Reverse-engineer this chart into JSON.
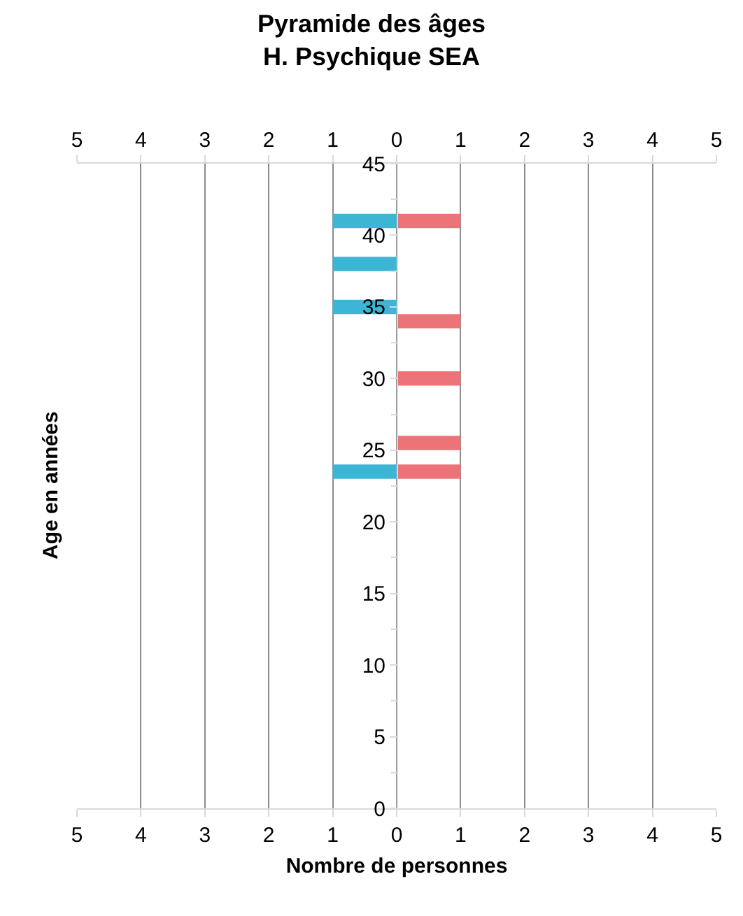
{
  "chart_data": {
    "type": "bar",
    "orientation": "horizontal",
    "title": "Pyramide des âges\nH. Psychique SEA",
    "xlabel": "Nombre de personnes",
    "ylabel": "Age en années",
    "series": [
      {
        "color": "#3cb6d4",
        "x": [
          41,
          38,
          35,
          23.5
        ],
        "values": [
          -1,
          -1,
          -1,
          -1
        ]
      },
      {
        "color": "#ec7479",
        "x": [
          41,
          34,
          30,
          25.5,
          23.5
        ],
        "values": [
          1,
          1,
          1,
          1,
          1
        ]
      }
    ],
    "xlim": [
      -5,
      5
    ],
    "xticks": [
      {
        "value": -5,
        "label": "5"
      },
      {
        "value": -4,
        "label": "4"
      },
      {
        "value": -3,
        "label": "3"
      },
      {
        "value": -2,
        "label": "2"
      },
      {
        "value": -1,
        "label": "1"
      },
      0,
      1,
      2,
      3,
      4,
      5
    ],
    "x2lim": [
      -5,
      5
    ],
    "x2ticks": [
      {
        "value": -5,
        "label": "5"
      },
      {
        "value": -4,
        "label": "4"
      },
      {
        "value": -3,
        "label": "3"
      },
      {
        "value": -2,
        "label": "2"
      },
      {
        "value": -1,
        "label": "1"
      },
      0,
      1,
      2,
      3,
      4,
      5
    ],
    "ylim": [
      0,
      45
    ],
    "yticks": [
      0,
      5,
      10,
      15,
      20,
      25,
      30,
      35,
      40,
      45
    ],
    "grid": "x"
  }
}
